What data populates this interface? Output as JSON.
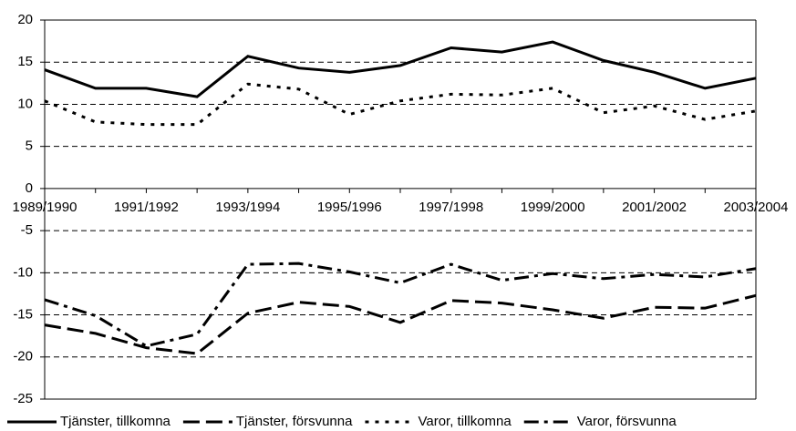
{
  "chart_data": {
    "type": "line",
    "categories": [
      "1989/1990",
      null,
      "1991/1992",
      null,
      "1993/1994",
      null,
      "1995/1996",
      null,
      "1997/1998",
      null,
      "1999/2000",
      null,
      "2001/2002",
      null,
      "2003/2004"
    ],
    "series": [
      {
        "name": "Tjänster, tillkomna",
        "color": "#000000",
        "style": "solid",
        "values": [
          14.1,
          11.9,
          11.9,
          10.9,
          15.7,
          14.3,
          13.8,
          14.6,
          16.7,
          16.2,
          17.4,
          15.2,
          13.8,
          11.9,
          13.1
        ]
      },
      {
        "name": "Tjänster, försvunna",
        "color": "#000000",
        "style": "dashed",
        "values": [
          -16.2,
          -17.2,
          -18.9,
          -19.6,
          -14.8,
          -13.5,
          -14.0,
          -15.9,
          -13.3,
          -13.6,
          -14.4,
          -15.4,
          -14.1,
          -14.2,
          -12.7
        ]
      },
      {
        "name": "Varor, tillkomna",
        "color": "#000000",
        "style": "dotted",
        "values": [
          10.4,
          7.9,
          7.6,
          7.6,
          12.4,
          11.8,
          8.8,
          10.4,
          11.2,
          11.1,
          11.9,
          9.0,
          9.8,
          8.2,
          9.2
        ]
      },
      {
        "name": "Varor, försvunna",
        "color": "#000000",
        "style": "dashdot",
        "values": [
          -13.2,
          -15.1,
          -18.7,
          -17.3,
          -9.0,
          -8.9,
          -9.9,
          -11.2,
          -9.0,
          -10.9,
          -10.1,
          -10.7,
          -10.2,
          -10.5,
          -9.5
        ]
      }
    ],
    "ylim": [
      -25,
      20
    ],
    "yticks": [
      -25,
      -20,
      -15,
      -10,
      -5,
      0,
      5,
      10,
      15,
      20
    ],
    "grid": true,
    "legend": "bottom"
  }
}
